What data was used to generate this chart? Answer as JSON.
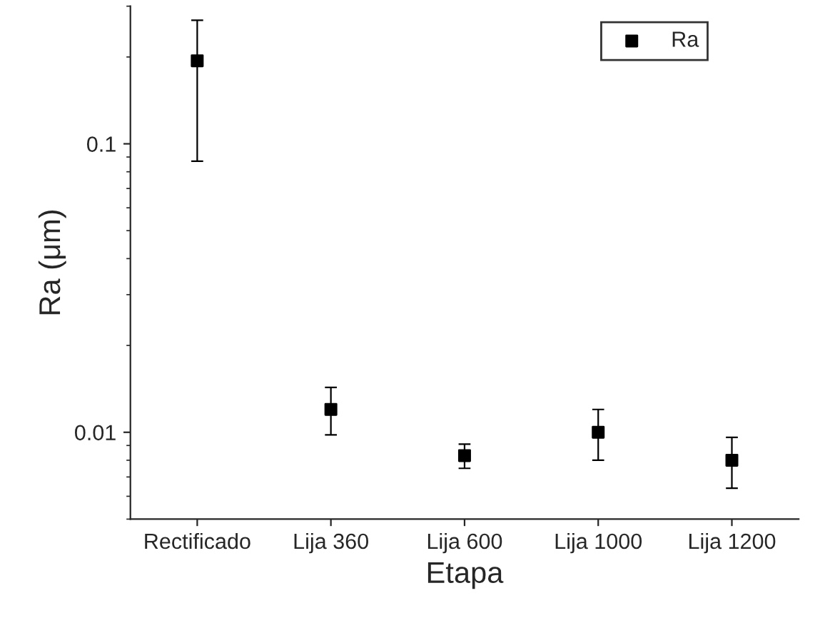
{
  "chart_data": {
    "type": "scatter",
    "xlabel": "Etapa",
    "ylabel": "Ra (μm)",
    "categories": [
      "Rectificado",
      "Lija 360",
      "Lija 600",
      "Lija 1000",
      "Lija 1200"
    ],
    "series": [
      {
        "name": "Ra",
        "color": "#000000",
        "values": [
          0.194,
          0.012,
          0.0083,
          0.01,
          0.008
        ],
        "errors": [
          [
            0.087,
            0.268
          ],
          [
            0.0098,
            0.0143
          ],
          [
            0.0075,
            0.0091
          ],
          [
            0.008,
            0.012
          ],
          [
            0.0064,
            0.0096
          ]
        ]
      }
    ],
    "log": "y",
    "ylim": [
      0.005,
      0.3
    ],
    "yticks": [
      0.01,
      0.1
    ],
    "marker": "square",
    "legend": "top right",
    "grid": false
  }
}
